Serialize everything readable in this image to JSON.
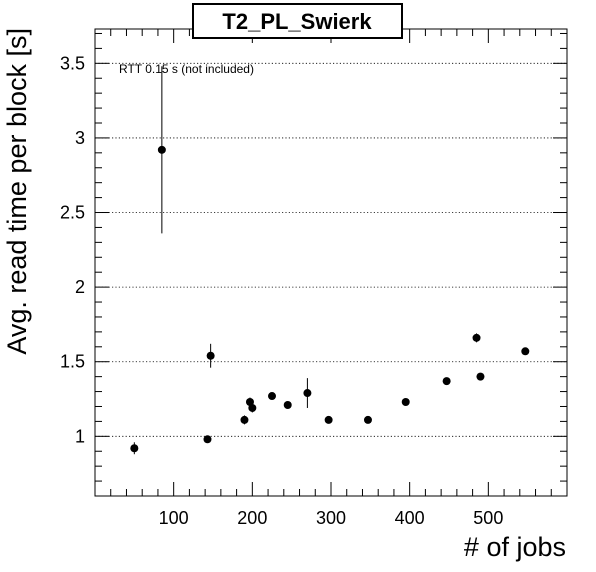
{
  "chart_data": {
    "type": "scatter",
    "title": "T2_PL_Swierk",
    "xlabel": "# of jobs",
    "ylabel": "Avg. read time per block [s]",
    "annotation": "RTT 0.15 s (not included)",
    "xlim": [
      0,
      600
    ],
    "ylim": [
      0.6,
      3.73
    ],
    "x_ticks": [
      100,
      200,
      300,
      400,
      500
    ],
    "y_ticks": [
      1,
      1.5,
      2,
      2.5,
      3,
      3.5
    ],
    "x_tick_labels": [
      "100",
      "200",
      "300",
      "400",
      "500"
    ],
    "y_tick_labels": [
      "1",
      "1.5",
      "2",
      "2.5",
      "3",
      "3.5"
    ],
    "grid": "horizontal-dotted",
    "series": [
      {
        "x": [
          50,
          85,
          143,
          147,
          190,
          197,
          200,
          225,
          245,
          270,
          297,
          347,
          395,
          447,
          485,
          490,
          547
        ],
        "y": [
          0.92,
          2.92,
          0.98,
          1.54,
          1.11,
          1.23,
          1.19,
          1.27,
          1.21,
          1.29,
          1.11,
          1.11,
          1.23,
          1.37,
          1.66,
          1.4,
          1.57
        ],
        "yerr": [
          0.04,
          0.56,
          0.02,
          0.08,
          0.03,
          0.03,
          0.03,
          0.02,
          0.02,
          0.1,
          0.02,
          0.02,
          0.02,
          0.02,
          0.03,
          0.02,
          0.02
        ]
      }
    ]
  }
}
